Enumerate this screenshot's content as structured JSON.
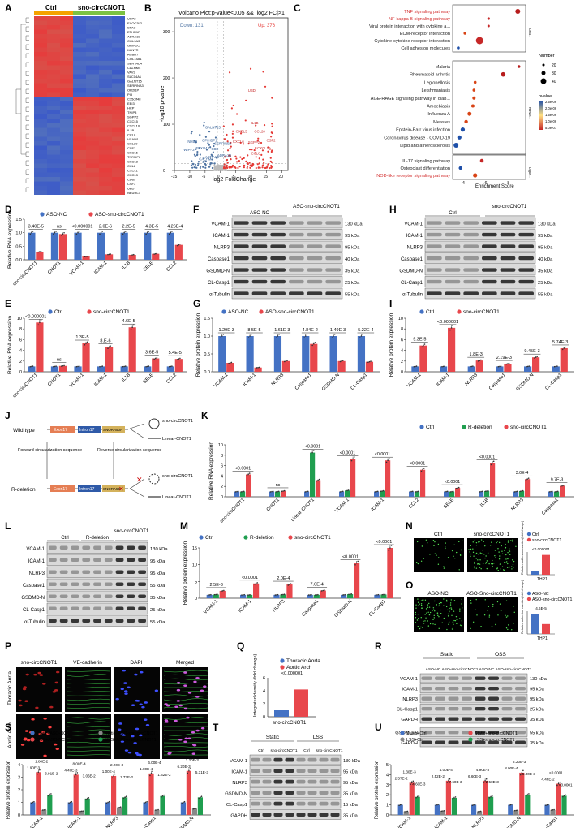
{
  "colors": {
    "blue": "#4472c4",
    "red": "#e8474c",
    "green": "#1f9e4f",
    "grey": "#888888",
    "heatRed": "#e53935",
    "heatBlue": "#1e4fa8"
  },
  "panelA": {
    "label": "A",
    "groups": [
      "Ctrl",
      "sno-circCNOT1"
    ],
    "genes": [
      "USP2",
      "EXOC3L2",
      "STAC",
      "ETHR1R",
      "ADRA1B",
      "COL9A3",
      "GRIN2C",
      "KANTR",
      "ACBD7",
      "COL14A1",
      "SERTAD4",
      "CALHM4",
      "VAV3",
      "SLC14A1",
      "GALNT15",
      "SERPINA3",
      "OR2I1P",
      "PI3",
      "C15orf48",
      "EBI3",
      "HCP",
      "TNIP3",
      "SGPP2",
      "CXCL5",
      "CXCL10",
      "IL1B",
      "CCL8",
      "VCAM1",
      "CCL20",
      "CSF2",
      "CXCL6",
      "TNFAIP6",
      "CXCL8",
      "CCL2",
      "CXCL1",
      "CXCL3",
      "CD69",
      "CSF3",
      "UBD",
      "NEURL3"
    ]
  },
  "panelB": {
    "label": "B",
    "title": "Volcano Plot:p-value<0.05 && |log2 FC|>1",
    "down": "Down: 131",
    "up": "Up: 376",
    "xlabel": "log2 FoldChange",
    "ylabel": "-log10 p-value",
    "xticks": [
      "-15",
      "-10",
      "-5",
      "0",
      "5",
      "10",
      "15",
      "20"
    ],
    "yticks": [
      "0",
      "100",
      "200",
      "300"
    ],
    "labels_down": [
      "GALNT15",
      "INHBB",
      "GPIHBP1",
      "SERPINB4",
      "WIPF3",
      "FBXO43",
      "CBD",
      "ADRA1D",
      "CALHM",
      "ADRA1B"
    ],
    "labels_up": [
      "UBD",
      "IL1B",
      "CXCL5",
      "CCL20",
      "CSF2",
      "SGPP2",
      "CXCL10",
      "CCL8",
      "CXCL6"
    ]
  },
  "panelC": {
    "label": "C",
    "xlabel": "Enrichment Score",
    "xticks": [
      "4",
      "6",
      "8"
    ],
    "cellular": [
      "TNF signaling pathway",
      "NF-kappa B signaling pathway",
      "Viral protein interaction with cytokine a...",
      "ECM-receptor interaction",
      "Cytokine-cytokine receptor interaction",
      "Cell adhesion molecules"
    ],
    "human": [
      "Malaria",
      "Rheumatoid arthritis",
      "Legionellosis",
      "Leishmaniasis",
      "AGE-RAGE signaling pathway in diab...",
      "Amoebiasis",
      "Influenza A",
      "Measles",
      "Epstein-Barr virus infection",
      "Coronavirus disease - COVID-19",
      "Lipid and atherosclerosis"
    ],
    "organismal": [
      "IL-17 signaling pathway",
      "Osteoclast differentiation",
      "NOD-like receptor signaling pathway"
    ],
    "group_labels": [
      "Cellu...",
      "Human...",
      "Organ..."
    ],
    "red_terms": [
      "TNF signaling pathway",
      "NF-kappa B signaling pathway",
      "NOD-like receptor signaling pathway"
    ],
    "legend_number_title": "Number",
    "legend_numbers": [
      "20",
      "30",
      "40"
    ],
    "legend_p_title": "pvalue",
    "legend_p": [
      "2.5e-06",
      "2.0e-06",
      "1.5e-06",
      "1.0e-06",
      "5.0e-07"
    ]
  },
  "panelD": {
    "label": "D",
    "type": "bar",
    "ylabel": "Relative RNA expression",
    "legend": [
      "ASO-NC",
      "ASO-sno-circCNOT1"
    ],
    "categories": [
      "sno-circCNOT1",
      "CNOT1",
      "VCAM-1",
      "ICAM-1",
      "IL1B",
      "SELE",
      "CCL2"
    ],
    "values1": [
      1,
      1,
      1,
      1,
      1,
      1,
      1
    ],
    "values2": [
      0.3,
      0.95,
      0.12,
      0.2,
      0.18,
      0.22,
      0.55
    ],
    "ylim": [
      0,
      1.5
    ],
    "yticks": [
      "0.0",
      "0.5",
      "1.0",
      "1.5"
    ],
    "pvals": [
      "3.40E-5",
      "ns",
      "<0.000001",
      "2.0E-6",
      "2.2E-5",
      "4.3E-5",
      "4.26E-4"
    ]
  },
  "panelE": {
    "label": "E",
    "type": "bar",
    "ylabel": "Relative RNA expression",
    "legend": [
      "Ctrl",
      "sno-circCNOT1"
    ],
    "categories": [
      "sno-circCNOT1",
      "CNOT1",
      "VCAM-1",
      "ICAM-1",
      "IL1B",
      "SELE",
      "CCL2"
    ],
    "values1": [
      1,
      1,
      1,
      1,
      1,
      1,
      1
    ],
    "values2": [
      9.2,
      1.1,
      5.3,
      4.6,
      8.3,
      2.5,
      2.4
    ],
    "ylim": [
      0,
      10
    ],
    "yticks": [
      "0",
      "2",
      "4",
      "6",
      "8",
      "10"
    ],
    "pvals": [
      "<0.000001",
      "ns",
      "1.3E-5",
      "8.E-6",
      "4.6E-5",
      "3.6E-5",
      "5.4E-5"
    ]
  },
  "panelF": {
    "label": "F",
    "headers": [
      "ASO-NC",
      "ASO-sno-circCNOT1"
    ],
    "rows": [
      "VCAM-1",
      "ICAM-1",
      "NLRP3",
      "Caspase1",
      "GSDMD-N",
      "CL-Casp1",
      "α-Tubulin"
    ],
    "kda": [
      "130 kDa",
      "95 kDa",
      "95 kDa",
      "40 kDa",
      "35 kDa",
      "25 kDa",
      "55 kDa"
    ]
  },
  "panelG": {
    "label": "G",
    "type": "bar",
    "ylabel": "Relative protein expression",
    "legend": [
      "ASO-NC",
      "ASO-sno-circCNOT1"
    ],
    "categories": [
      "VCAM-1",
      "ICAM-1",
      "NLRP3",
      "Caspase1",
      "GSDMD-N",
      "CL-Casp1"
    ],
    "values1": [
      1,
      1,
      1,
      1,
      1,
      1
    ],
    "values2": [
      0.25,
      0.12,
      0.3,
      0.78,
      0.3,
      0.28
    ],
    "ylim": [
      0,
      1.5
    ],
    "yticks": [
      "0.0",
      "0.5",
      "1.0",
      "1.5"
    ],
    "pvals": [
      "1.29E-3",
      "8.5E-5",
      "1.61E-3",
      "4.84E-2",
      "1.49E-3",
      "5.22E-4"
    ]
  },
  "panelH": {
    "label": "H",
    "headers": [
      "Ctrl",
      "sno-circCNOT1"
    ],
    "rows": [
      "VCAM-1",
      "ICAM-1",
      "NLRP3",
      "Caspase1",
      "GSDMD-N",
      "CL-Casp1",
      "α-Tubulin"
    ],
    "kda": [
      "130 kDa",
      "95 kDa",
      "95 kDa",
      "40 kDa",
      "35 kDa",
      "25 kDa",
      "55 kDa"
    ]
  },
  "panelI": {
    "label": "I",
    "type": "bar",
    "ylabel": "Relative protein expression",
    "legend": [
      "Ctrl",
      "sno-circCNOT1"
    ],
    "categories": [
      "VCAM-1",
      "ICAM-1",
      "NLRP3",
      "Caspase1",
      "GSDMD-N",
      "CL-Casp1"
    ],
    "values1": [
      1,
      1,
      1,
      1,
      1,
      1
    ],
    "values2": [
      4.9,
      8.2,
      2.1,
      1.5,
      2.7,
      4.4
    ],
    "ylim": [
      0,
      10
    ],
    "yticks": [
      "0",
      "2",
      "4",
      "6",
      "8",
      "10"
    ],
    "pvals": [
      "9.3E-5",
      "<0.000001",
      "1.8E-3",
      "2.19E-3",
      "9.45E-3",
      "5.74E-3"
    ]
  },
  "panelJ": {
    "label": "J",
    "wild": "Wild type",
    "rdel": "R-deletion",
    "exon": "Exon17",
    "intron": "Intron17",
    "sno": "SNORA50A",
    "fwd": "Forward circularization sequence",
    "rev": "Reverse circularization sequence",
    "out1": "sno-circCNOT1",
    "out2": "Linear-CNOT1"
  },
  "panelK": {
    "label": "K",
    "type": "bar",
    "ylabel": "Relative RNA expression",
    "legend": [
      "Ctrl",
      "R-deletion",
      "sno-circCNOT1"
    ],
    "categories": [
      "sno-circCNOT1",
      "CNOT1",
      "Linear-CNOT1",
      "VCAM-1",
      "ICAM-1",
      "CCL2",
      "SELE",
      "IL1B",
      "NLRP3",
      "Caspase1"
    ],
    "values1": [
      1,
      1,
      1,
      1,
      1,
      1,
      1,
      1,
      1,
      1
    ],
    "values2": [
      1,
      1,
      8.5,
      1.2,
      1.1,
      1,
      1,
      1.1,
      1.1,
      1
    ],
    "values3": [
      4.3,
      1.1,
      3.2,
      7.3,
      7,
      5.2,
      1.7,
      6.5,
      3.4,
      2.1
    ],
    "ylim": [
      0,
      10
    ],
    "yticks": [
      "0",
      "2",
      "4",
      "6",
      "8",
      "10"
    ],
    "pvals": [
      "<0.0001",
      "ns",
      "<0.0001",
      "<0.0001",
      "<0.0001",
      "<0.0001",
      "<0.0001",
      "<0.0001",
      "3.0E-4",
      "9.7E-3"
    ]
  },
  "panelL": {
    "label": "L",
    "headers": [
      "Ctrl",
      "R-deletion",
      "sno-circCNOT1"
    ],
    "rows": [
      "VCAM-1",
      "ICAM-1",
      "NLRP3",
      "Caspase1",
      "GSDMD-N",
      "CL-Casp1",
      "α-Tubulin"
    ],
    "kda": [
      "130 kDa",
      "95 kDa",
      "95 kDa",
      "55 kDa",
      "35 kDa",
      "25 kDa",
      "55 kDa"
    ]
  },
  "panelM": {
    "label": "M",
    "type": "bar",
    "ylabel": "Relative protein expression",
    "legend": [
      "Ctrl",
      "R-deletion",
      "sno-circCNOT1"
    ],
    "categories": [
      "VCAM-1",
      "ICAM-1",
      "NLRP3",
      "Caspase1",
      "GSDMD-N",
      "CL-Casp1"
    ],
    "values1": [
      1,
      1,
      1,
      1,
      1,
      1
    ],
    "values2": [
      1.1,
      1,
      1.1,
      1,
      1.2,
      1.1
    ],
    "values3": [
      2.2,
      4.4,
      4.1,
      2.3,
      10.5,
      15
    ],
    "ylim": [
      0,
      15
    ],
    "yticks": [
      "0",
      "5",
      "10",
      "15"
    ],
    "pvals": [
      "2.5E-3",
      "<0.0001",
      "2.0E-4",
      "7.0E-4",
      "<0.0001",
      "<0.0001"
    ]
  },
  "panelN": {
    "label": "N",
    "images": [
      "Ctrl",
      "sno-circCNOT1"
    ],
    "legend": [
      "Ctrl",
      "sno-circCNOT1"
    ],
    "ylabel": "Relative adhesion number(fold change)",
    "xlabel": "THP1",
    "pval": "<0.000001",
    "values": [
      1,
      5.5
    ]
  },
  "panelO": {
    "label": "O",
    "images": [
      "ASO-NC",
      "ASO-Sno-circCNOT1"
    ],
    "legend": [
      "ASO-NC",
      "ASO-sno-circCNOT1"
    ],
    "ylabel": "Relative adhesion number(fold change)",
    "xlabel": "THP1",
    "pval": "4.6E-5",
    "values": [
      1,
      0.5
    ]
  },
  "panelP": {
    "label": "P",
    "columns": [
      "sno-circCNOT1",
      "VE-cadherin",
      "DAPI",
      "Merged"
    ],
    "rows": [
      "Thoracic Aorta",
      "Aortic Arch"
    ]
  },
  "panelQ": {
    "label": "Q",
    "legend": [
      "Thoracic Aorta",
      "Aortic Arch"
    ],
    "ylabel": "Integrated density (fold change)",
    "xlabel": "sno-circCNOT1",
    "pval": "<0.000001",
    "values": [
      1,
      4.2
    ]
  },
  "panelR": {
    "label": "R",
    "groups": [
      "Static",
      "OSS"
    ],
    "lanes": [
      "ASO-NC",
      "ASO-sno-circCNOT1",
      "ASO-NC",
      "ASO-sno-circCNOT1"
    ],
    "rows": [
      "VCAM-1",
      "ICAM-1",
      "NLRP3",
      "CL-Casp1",
      "GAPDH",
      "GSDMD-N",
      "GAPDH"
    ],
    "kda": [
      "130 kDa",
      "95 kDa",
      "95 kDa",
      "25 kDa",
      "35 kDa",
      "55 kDa",
      "35 kDa"
    ]
  },
  "panelS": {
    "label": "S",
    "type": "bar",
    "ylabel": "Relative protein expression",
    "legend": [
      "Static+ASO-NC",
      "OSS+ASO-NC",
      "Static+ASO-sno-circCNOT1",
      "OSS+ASO-sno-circCNOT1"
    ],
    "categories": [
      "VCAM-1",
      "ICAM-1",
      "NLRP3",
      "CL-Casp1",
      "GSDMD-N"
    ],
    "values1": [
      1,
      1,
      1,
      1,
      1
    ],
    "values2": [
      3.4,
      3.2,
      3.1,
      3.3,
      3.5
    ],
    "values3": [
      0.4,
      0.3,
      0.6,
      0.4,
      0.5
    ],
    "values4": [
      1.6,
      1.3,
      1.4,
      1.5,
      1.4
    ],
    "ylim": [
      0,
      4
    ],
    "yticks": [
      "0",
      "1",
      "2",
      "3",
      "4"
    ],
    "pvals_top": [
      "1.80E-2",
      "8.00E-4",
      "2.20E-3",
      "6.00E-4",
      "1.20E-3"
    ],
    "pvals_mid": [
      "1.90E-3",
      "4.40E-3",
      "1.00E-4",
      "1.00E-4",
      "6.20E-3"
    ],
    "pvals_right": [
      "3.91E-2",
      "3.06E-2",
      "1.72E-2",
      "1.42E-2",
      "5.31E-3"
    ]
  },
  "panelT": {
    "label": "T",
    "groups": [
      "Static",
      "LSS"
    ],
    "lanes": [
      "Ctrl",
      "sno-circCNOT1",
      "Ctrl",
      "sno-circCNOT1"
    ],
    "rows": [
      "VCAM-1",
      "ICAM-1",
      "NLRP3",
      "GSDMD-N",
      "CL-Casp1",
      "GAPDH"
    ],
    "kda": [
      "130 kDa",
      "95 kDa",
      "95 kDa",
      "35 kDa",
      "15 kDa",
      "35 kDa"
    ]
  },
  "panelU": {
    "label": "U",
    "type": "bar",
    "ylabel": "Relative protein expression",
    "legend": [
      "Static+Ctrl",
      "LSS+Ctrl",
      "Static+sno-circCNOT1",
      "LSS+sno-circCNOT1"
    ],
    "categories": [
      "VCAM-1",
      "ICAM-1",
      "NLRP3",
      "GSDMD-N",
      "CL-Casp1"
    ],
    "values1": [
      1,
      1,
      1,
      1,
      1
    ],
    "values2": [
      0.35,
      0.4,
      0.35,
      0.45,
      0.5
    ],
    "values3": [
      3.2,
      3.4,
      3.4,
      4.2,
      3.1
    ],
    "values4": [
      1.8,
      1.7,
      1.8,
      2.0,
      1.9
    ],
    "ylim": [
      0,
      5
    ],
    "yticks": [
      "0",
      "1",
      "2",
      "3",
      "4",
      "5"
    ],
    "pvals_top": [
      "1.30E-3",
      "4.00E-4",
      "4.90E-3",
      "2.20E-3",
      "<0.0001"
    ],
    "pvals_mid": [
      "2.57E-2",
      "2.52E-2",
      "6.60E-3",
      "8.00E-4",
      "4.46E-2"
    ],
    "pvals_right": [
      "4.60E-3",
      "7.60E-3",
      "2.50E-3",
      "5.00E-3",
      "<0.0001"
    ]
  }
}
